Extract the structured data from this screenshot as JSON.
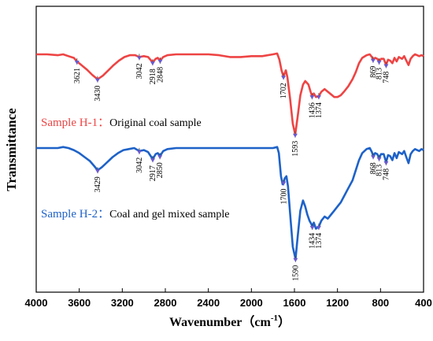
{
  "chart_data": {
    "type": "line",
    "xlabel": "Wavenumber（cm",
    "xlabel_sup": "-1",
    "xlabel_close": "）",
    "ylabel": "Transmittance",
    "xlim": [
      4000,
      400
    ],
    "x_reversed": true,
    "x_ticks": [
      "4000",
      "3600",
      "3200",
      "2800",
      "2400",
      "2000",
      "1600",
      "1200",
      "800",
      "400"
    ],
    "y_ticks_shown": false,
    "series": [
      {
        "key": "h1",
        "color": "#ee4444",
        "label": "Sample H-1：",
        "description": "Original coal sample",
        "points": [
          [
            4000,
            0.0
          ],
          [
            3900,
            0.0
          ],
          [
            3800,
            0.01
          ],
          [
            3750,
            0.0
          ],
          [
            3700,
            0.02
          ],
          [
            3650,
            0.04
          ],
          [
            3621,
            0.08
          ],
          [
            3580,
            0.12
          ],
          [
            3530,
            0.17
          ],
          [
            3480,
            0.23
          ],
          [
            3430,
            0.28
          ],
          [
            3380,
            0.24
          ],
          [
            3330,
            0.18
          ],
          [
            3280,
            0.12
          ],
          [
            3230,
            0.07
          ],
          [
            3180,
            0.03
          ],
          [
            3130,
            0.01
          ],
          [
            3080,
            0.01
          ],
          [
            3042,
            0.03
          ],
          [
            3000,
            0.02
          ],
          [
            2960,
            0.03
          ],
          [
            2918,
            0.09
          ],
          [
            2890,
            0.05
          ],
          [
            2870,
            0.04
          ],
          [
            2848,
            0.07
          ],
          [
            2820,
            0.03
          ],
          [
            2780,
            0.01
          ],
          [
            2700,
            0.0
          ],
          [
            2600,
            0.0
          ],
          [
            2500,
            0.0
          ],
          [
            2400,
            0.0
          ],
          [
            2300,
            0.01
          ],
          [
            2200,
            0.03
          ],
          [
            2100,
            0.03
          ],
          [
            2000,
            0.02
          ],
          [
            1900,
            0.02
          ],
          [
            1800,
            0.0
          ],
          [
            1760,
            -0.01
          ],
          [
            1740,
            0.06
          ],
          [
            1720,
            0.18
          ],
          [
            1702,
            0.25
          ],
          [
            1690,
            0.21
          ],
          [
            1680,
            0.18
          ],
          [
            1665,
            0.26
          ],
          [
            1640,
            0.5
          ],
          [
            1615,
            0.78
          ],
          [
            1593,
            0.9
          ],
          [
            1570,
            0.7
          ],
          [
            1545,
            0.46
          ],
          [
            1520,
            0.34
          ],
          [
            1500,
            0.3
          ],
          [
            1470,
            0.34
          ],
          [
            1450,
            0.42
          ],
          [
            1436,
            0.47
          ],
          [
            1420,
            0.44
          ],
          [
            1400,
            0.48
          ],
          [
            1374,
            0.47
          ],
          [
            1350,
            0.42
          ],
          [
            1320,
            0.39
          ],
          [
            1290,
            0.42
          ],
          [
            1260,
            0.45
          ],
          [
            1230,
            0.48
          ],
          [
            1200,
            0.48
          ],
          [
            1170,
            0.46
          ],
          [
            1140,
            0.42
          ],
          [
            1100,
            0.36
          ],
          [
            1060,
            0.28
          ],
          [
            1030,
            0.2
          ],
          [
            1000,
            0.1
          ],
          [
            970,
            0.04
          ],
          [
            930,
            0.01
          ],
          [
            900,
            0.0
          ],
          [
            880,
            0.03
          ],
          [
            869,
            0.06
          ],
          [
            850,
            0.04
          ],
          [
            830,
            0.05
          ],
          [
            813,
            0.08
          ],
          [
            795,
            0.05
          ],
          [
            770,
            0.05
          ],
          [
            748,
            0.12
          ],
          [
            730,
            0.06
          ],
          [
            710,
            0.07
          ],
          [
            690,
            0.1
          ],
          [
            670,
            0.04
          ],
          [
            650,
            0.08
          ],
          [
            630,
            0.03
          ],
          [
            600,
            0.05
          ],
          [
            580,
            0.02
          ],
          [
            560,
            0.07
          ],
          [
            540,
            0.12
          ],
          [
            520,
            0.05
          ],
          [
            500,
            0.02
          ],
          [
            480,
            0.0
          ],
          [
            460,
            0.01
          ],
          [
            440,
            0.02
          ],
          [
            420,
            0.01
          ],
          [
            400,
            0.02
          ]
        ],
        "peaks": [
          {
            "wn": 3621,
            "label": "3621"
          },
          {
            "wn": 3430,
            "label": "3430"
          },
          {
            "wn": 3042,
            "label": "3042"
          },
          {
            "wn": 2918,
            "label": "2918"
          },
          {
            "wn": 2848,
            "label": "2848"
          },
          {
            "wn": 1702,
            "label": "1702"
          },
          {
            "wn": 1593,
            "label": "1593"
          },
          {
            "wn": 1436,
            "label": "1436"
          },
          {
            "wn": 1374,
            "label": "1374"
          },
          {
            "wn": 869,
            "label": "869"
          },
          {
            "wn": 813,
            "label": "813"
          },
          {
            "wn": 748,
            "label": "748"
          }
        ]
      },
      {
        "key": "h2",
        "color": "#1e62c8",
        "label": "Sample H-2：",
        "description": "Coal and gel mixed sample",
        "points": [
          [
            4000,
            0.0
          ],
          [
            3900,
            0.0
          ],
          [
            3800,
            0.0
          ],
          [
            3750,
            -0.01
          ],
          [
            3700,
            0.0
          ],
          [
            3650,
            0.02
          ],
          [
            3600,
            0.05
          ],
          [
            3550,
            0.09
          ],
          [
            3500,
            0.13
          ],
          [
            3460,
            0.18
          ],
          [
            3429,
            0.22
          ],
          [
            3390,
            0.19
          ],
          [
            3340,
            0.14
          ],
          [
            3290,
            0.09
          ],
          [
            3240,
            0.05
          ],
          [
            3190,
            0.02
          ],
          [
            3140,
            0.01
          ],
          [
            3090,
            0.0
          ],
          [
            3042,
            0.03
          ],
          [
            3000,
            0.02
          ],
          [
            2960,
            0.04
          ],
          [
            2917,
            0.11
          ],
          [
            2890,
            0.06
          ],
          [
            2870,
            0.05
          ],
          [
            2850,
            0.08
          ],
          [
            2820,
            0.03
          ],
          [
            2780,
            0.01
          ],
          [
            2700,
            0.0
          ],
          [
            2600,
            0.0
          ],
          [
            2500,
            0.0
          ],
          [
            2400,
            0.0
          ],
          [
            2300,
            0.0
          ],
          [
            2200,
            0.0
          ],
          [
            2100,
            0.0
          ],
          [
            2000,
            0.0
          ],
          [
            1900,
            0.0
          ],
          [
            1800,
            0.0
          ],
          [
            1760,
            -0.01
          ],
          [
            1745,
            0.05
          ],
          [
            1725,
            0.28
          ],
          [
            1710,
            0.36
          ],
          [
            1700,
            0.34
          ],
          [
            1690,
            0.3
          ],
          [
            1675,
            0.28
          ],
          [
            1660,
            0.38
          ],
          [
            1640,
            0.65
          ],
          [
            1615,
            0.98
          ],
          [
            1590,
            1.1
          ],
          [
            1570,
            0.88
          ],
          [
            1545,
            0.62
          ],
          [
            1520,
            0.52
          ],
          [
            1500,
            0.58
          ],
          [
            1480,
            0.66
          ],
          [
            1460,
            0.72
          ],
          [
            1440,
            0.76
          ],
          [
            1434,
            0.78
          ],
          [
            1420,
            0.74
          ],
          [
            1400,
            0.8
          ],
          [
            1374,
            0.78
          ],
          [
            1350,
            0.72
          ],
          [
            1320,
            0.68
          ],
          [
            1290,
            0.7
          ],
          [
            1260,
            0.66
          ],
          [
            1230,
            0.62
          ],
          [
            1200,
            0.58
          ],
          [
            1170,
            0.54
          ],
          [
            1140,
            0.48
          ],
          [
            1100,
            0.4
          ],
          [
            1060,
            0.32
          ],
          [
            1030,
            0.22
          ],
          [
            1000,
            0.12
          ],
          [
            970,
            0.05
          ],
          [
            930,
            0.01
          ],
          [
            900,
            0.0
          ],
          [
            880,
            0.04
          ],
          [
            868,
            0.08
          ],
          [
            850,
            0.05
          ],
          [
            830,
            0.06
          ],
          [
            813,
            0.1
          ],
          [
            795,
            0.06
          ],
          [
            770,
            0.06
          ],
          [
            748,
            0.14
          ],
          [
            730,
            0.07
          ],
          [
            710,
            0.08
          ],
          [
            690,
            0.12
          ],
          [
            670,
            0.05
          ],
          [
            650,
            0.1
          ],
          [
            630,
            0.04
          ],
          [
            600,
            0.06
          ],
          [
            580,
            0.03
          ],
          [
            560,
            0.09
          ],
          [
            540,
            0.15
          ],
          [
            520,
            0.06
          ],
          [
            500,
            0.03
          ],
          [
            480,
            0.01
          ],
          [
            460,
            0.02
          ],
          [
            440,
            0.03
          ],
          [
            420,
            0.01
          ],
          [
            400,
            0.02
          ]
        ],
        "peaks": [
          {
            "wn": 3429,
            "label": "3429"
          },
          {
            "wn": 3042,
            "label": "3042"
          },
          {
            "wn": 2917,
            "label": "2917"
          },
          {
            "wn": 2850,
            "label": "2850"
          },
          {
            "wn": 1700,
            "label": "1700"
          },
          {
            "wn": 1590,
            "label": "1590"
          },
          {
            "wn": 1434,
            "label": "1434"
          },
          {
            "wn": 1374,
            "label": "1374"
          },
          {
            "wn": 868,
            "label": "868"
          },
          {
            "wn": 813,
            "label": "813"
          },
          {
            "wn": 748,
            "label": "748"
          }
        ]
      }
    ]
  }
}
